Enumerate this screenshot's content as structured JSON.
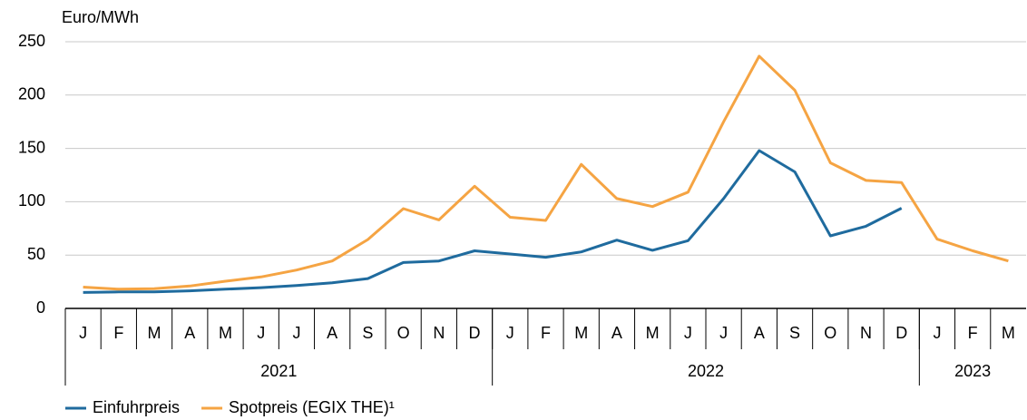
{
  "chart_data": {
    "type": "line",
    "y_axis_label": "Euro/MWh",
    "categories": [
      "J",
      "F",
      "M",
      "A",
      "M",
      "J",
      "J",
      "A",
      "S",
      "O",
      "N",
      "D",
      "J",
      "F",
      "M",
      "A",
      "M",
      "J",
      "J",
      "A",
      "S",
      "O",
      "N",
      "D",
      "J",
      "F",
      "M"
    ],
    "groups": [
      {
        "label": "2021",
        "count": 12
      },
      {
        "label": "2022",
        "count": 12
      },
      {
        "label": "2023",
        "count": 3
      }
    ],
    "series": [
      {
        "name": "Einfuhrpreis",
        "color": "#1f6b9e",
        "values": [
          15,
          15.5,
          15.5,
          16.5,
          18,
          19.5,
          21.5,
          24,
          28,
          43,
          44.5,
          54,
          51,
          48,
          53,
          64,
          54.5,
          63.5,
          103,
          148,
          128,
          68,
          77,
          94,
          null,
          null,
          null
        ]
      },
      {
        "name": "Spotpreis (EGIX THE)¹",
        "color": "#f5a443",
        "values": [
          20,
          18,
          18.5,
          21,
          25.5,
          29.5,
          36,
          44.5,
          64.5,
          93.5,
          83,
          114.5,
          85.5,
          82.5,
          135,
          103,
          95.5,
          109,
          175,
          236.5,
          204.5,
          136.5,
          120,
          118,
          65,
          54,
          44.5
        ]
      }
    ],
    "ylim": [
      0,
      250
    ],
    "yticks": [
      0,
      50,
      100,
      150,
      200,
      250
    ],
    "grid": true
  }
}
